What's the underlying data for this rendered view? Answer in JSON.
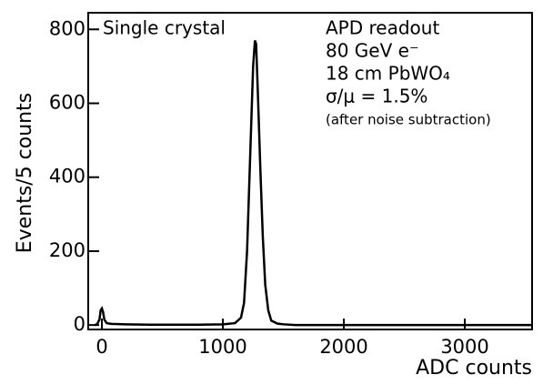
{
  "chart_data": {
    "type": "line",
    "x_label": "ADC counts",
    "y_label": "Events/5 counts",
    "annotations": [
      "Single crystal",
      "APD readout",
      "80 GeV e⁻",
      "18 cm PbWO₄",
      "σ/μ = 1.5%",
      "(after noise subtraction)"
    ],
    "x": [
      -60,
      -40,
      -20,
      -10,
      0,
      10,
      20,
      40,
      80,
      200,
      400,
      600,
      800,
      1000,
      1100,
      1150,
      1175,
      1200,
      1225,
      1250,
      1265,
      1275,
      1290,
      1310,
      1330,
      1350,
      1375,
      1400,
      1450,
      1500,
      1600,
      2000,
      3000,
      3550
    ],
    "series": [
      {
        "color": "#000000",
        "values": [
          0,
          2,
          15,
          40,
          45,
          35,
          15,
          5,
          3,
          2,
          1,
          1,
          1,
          2,
          5,
          20,
          60,
          200,
          450,
          700,
          770,
          760,
          620,
          420,
          240,
          110,
          40,
          12,
          4,
          2,
          0,
          0,
          0,
          0
        ]
      }
    ],
    "xlim": [
      -113,
      3556
    ],
    "ylim": [
      -12,
      845
    ],
    "xticks": [
      0,
      1000,
      2000,
      3000
    ],
    "yticks": [
      0,
      200,
      400,
      600,
      800
    ]
  }
}
